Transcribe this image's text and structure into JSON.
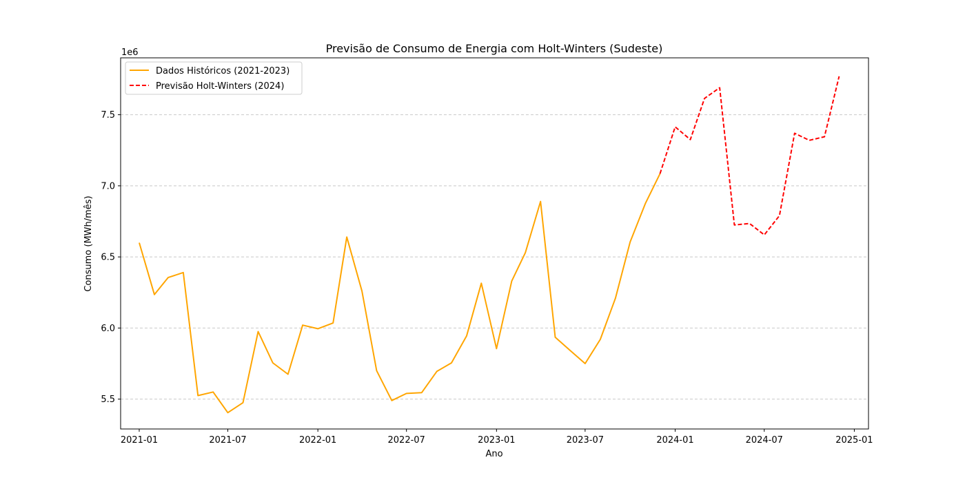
{
  "chart_data": {
    "type": "line",
    "title": "Previsão de Consumo de Energia com Holt-Winters (Sudeste)",
    "xlabel": "Ano",
    "ylabel": "Consumo (MWh/mês)",
    "y_offset_label": "1e6",
    "x_tick_labels": [
      "2021-01",
      "2021-07",
      "2022-01",
      "2022-07",
      "2023-01",
      "2023-07",
      "2024-01",
      "2024-07",
      "2025-01"
    ],
    "y_tick_labels": [
      "5.5",
      "6.0",
      "6.5",
      "7.0",
      "7.5"
    ],
    "xlim": [
      "2020-11-24",
      "2025-01-30"
    ],
    "ylim": [
      5290000,
      7900000
    ],
    "y_scale": 1000000,
    "grid": "y-dashed",
    "legend_position": "top-left",
    "series": [
      {
        "name": "Dados Históricos (2021-2023)",
        "color": "#FFA500",
        "linestyle": "solid",
        "x": [
          "2021-01",
          "2021-02",
          "2021-03",
          "2021-04",
          "2021-05",
          "2021-06",
          "2021-07",
          "2021-08",
          "2021-09",
          "2021-10",
          "2021-11",
          "2021-12",
          "2022-01",
          "2022-02",
          "2022-03",
          "2022-04",
          "2022-05",
          "2022-06",
          "2022-07",
          "2022-08",
          "2022-09",
          "2022-10",
          "2022-11",
          "2022-12",
          "2023-01",
          "2023-02",
          "2023-03",
          "2023-04",
          "2023-05",
          "2023-06",
          "2023-07",
          "2023-08",
          "2023-09",
          "2023-10",
          "2023-11",
          "2023-12"
        ],
        "values": [
          6600000,
          6235000,
          6355000,
          6390000,
          5525000,
          5550000,
          5405000,
          5475000,
          5975000,
          5755000,
          5675000,
          6020000,
          5995000,
          6035000,
          6640000,
          6260000,
          5700000,
          5490000,
          5540000,
          5545000,
          5695000,
          5755000,
          5945000,
          6315000,
          5855000,
          6330000,
          6530000,
          6890000,
          5935000,
          5840000,
          5750000,
          5920000,
          6210000,
          6605000,
          6875000,
          7085000
        ]
      },
      {
        "name": "Previsão Holt-Winters (2024)",
        "color": "#FF0000",
        "linestyle": "dashed",
        "x": [
          "2023-12",
          "2024-01",
          "2024-02",
          "2024-03",
          "2024-04",
          "2024-05",
          "2024-06",
          "2024-07",
          "2024-08",
          "2024-09",
          "2024-10",
          "2024-11",
          "2024-12"
        ],
        "values": [
          7085000,
          7415000,
          7325000,
          7615000,
          7690000,
          6725000,
          6735000,
          6655000,
          6790000,
          7370000,
          7320000,
          7345000,
          7770000
        ]
      }
    ]
  }
}
